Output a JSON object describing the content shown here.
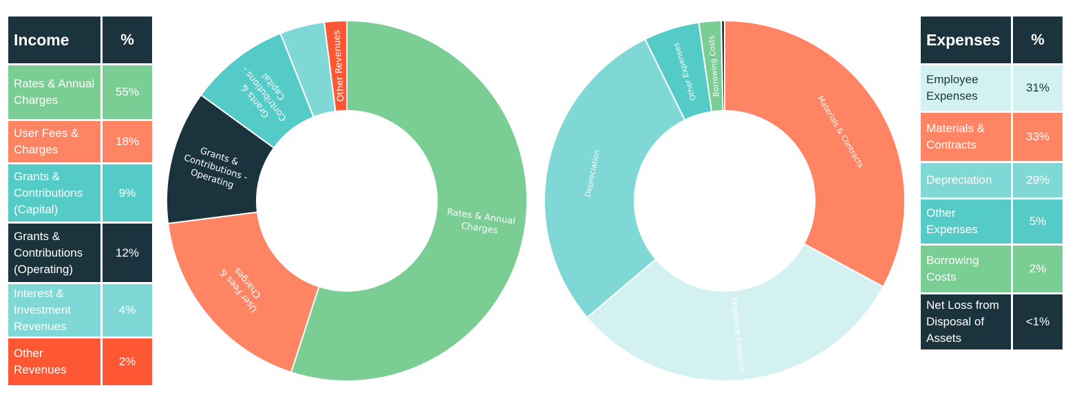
{
  "colors": {
    "dark": "#1b333d",
    "green": "#7acd93",
    "coral": "#fe8463",
    "teal": "#55cbc8",
    "light_teal": "#7fd8d5",
    "pale_teal": "#d4f1f1",
    "orange_red": "#fe5733",
    "dark_text": "#1b333d"
  },
  "income_table": {
    "header_label": "Income",
    "header_pct": "%",
    "rows": [
      {
        "label": "Rates & Annual Charges",
        "pct": "55%",
        "color": "green",
        "text": "light"
      },
      {
        "label": "User Fees & Charges",
        "pct": "18%",
        "color": "coral",
        "text": "light"
      },
      {
        "label": "Grants & Contributions (Capital)",
        "pct": "9%",
        "color": "teal",
        "text": "light"
      },
      {
        "label": "Grants & Contributions (Operating)",
        "pct": "12%",
        "color": "dark",
        "text": "light"
      },
      {
        "label": "Interest & Investment Revenues",
        "pct": "4%",
        "color": "light_teal",
        "text": "light"
      },
      {
        "label": "Other Revenues",
        "pct": "2%",
        "color": "orange_red",
        "text": "light"
      }
    ]
  },
  "expenses_table": {
    "header_label": "Expenses",
    "header_pct": "%",
    "rows": [
      {
        "label": "Employee Expenses",
        "pct": "31%",
        "color": "pale_teal",
        "text": "dark"
      },
      {
        "label": "Materials & Contracts",
        "pct": "33%",
        "color": "coral",
        "text": "light"
      },
      {
        "label": "Depreciation",
        "pct": "29%",
        "color": "light_teal",
        "text": "light"
      },
      {
        "label": "Other Expenses",
        "pct": "5%",
        "color": "teal",
        "text": "light"
      },
      {
        "label": "Borrowing Costs",
        "pct": "2%",
        "color": "green",
        "text": "light"
      },
      {
        "label": "Net Loss from Disposal of Assets",
        "pct": "<1%",
        "color": "dark",
        "text": "light"
      }
    ]
  },
  "chart_data": [
    {
      "type": "pie",
      "donut": true,
      "start": "12 o'clock",
      "direction": "clockwise",
      "slices": [
        {
          "label": "Rates & Annual Charges",
          "value": 55,
          "color": "green",
          "text": "light",
          "label_lines": [
            "Rates & Annual",
            "Charges"
          ],
          "label_style": "horizontal"
        },
        {
          "label": "User Fees & Charges",
          "value": 18,
          "color": "coral",
          "text": "light",
          "label_lines": [
            "User Fees &",
            "Charges"
          ],
          "label_style": "tangential"
        },
        {
          "label": "Grants & Contributions - Operating",
          "value": 12,
          "color": "dark",
          "text": "light",
          "label_lines": [
            "Grants &",
            "Contributions -",
            "Operating"
          ],
          "label_style": "horizontal"
        },
        {
          "label": "Grants & Contributions - Capital",
          "value": 9,
          "color": "teal",
          "text": "light",
          "label_lines": [
            "Grants &",
            "Contributions -",
            "Capital"
          ],
          "label_style": "radial"
        },
        {
          "label": "Interest & Investment Revenues",
          "value": 4,
          "color": "light_teal",
          "text": "light",
          "label_lines": [],
          "label_style": "none"
        },
        {
          "label": "Other Revenues",
          "value": 2,
          "color": "orange_red",
          "text": "light",
          "label_lines": [
            "Other Revenues"
          ],
          "label_style": "radial"
        }
      ]
    },
    {
      "type": "pie",
      "donut": true,
      "start": "12 o'clock",
      "direction": "clockwise",
      "slices": [
        {
          "label": "Materials & Contracts",
          "value": 33,
          "color": "coral",
          "text": "light",
          "label_lines": [
            "Materials & Contracts"
          ],
          "label_style": "tangential"
        },
        {
          "label": "Employee Expenses",
          "value": 31,
          "color": "pale_teal",
          "text": "dark",
          "label_lines": [
            "Employee Expenses"
          ],
          "label_style": "radial"
        },
        {
          "label": "Depreciation",
          "value": 29,
          "color": "light_teal",
          "text": "light",
          "label_lines": [
            "Depreciation"
          ],
          "label_style": "tangential"
        },
        {
          "label": "Other Expenses",
          "value": 5,
          "color": "teal",
          "text": "light",
          "label_lines": [
            "Other Expenses"
          ],
          "label_style": "radial"
        },
        {
          "label": "Borrowing Costs",
          "value": 2,
          "color": "green",
          "text": "light",
          "label_lines": [
            "Borrowing Costs"
          ],
          "label_style": "radial"
        },
        {
          "label": "Net Loss from Disposal of Assets",
          "value": 0.3,
          "color": "dark",
          "text": "light",
          "label_lines": [],
          "label_style": "none"
        }
      ]
    }
  ]
}
